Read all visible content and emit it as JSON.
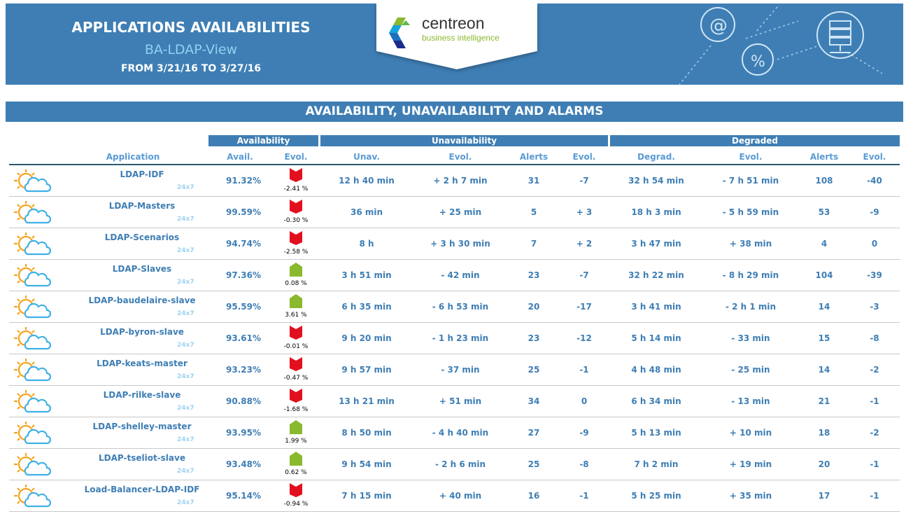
{
  "header": {
    "title": "APPLICATIONS AVAILABILITIES",
    "view": "BA-LDAP-View",
    "period": "FROM 3/21/16 TO 3/27/16",
    "logo": {
      "name": "centreon",
      "tagline": "business intelligence"
    }
  },
  "section_title": "AVAILABILITY, UNAVAILABILITY AND ALARMS",
  "groups": {
    "availability": "Availability",
    "unavailability": "Unavailability",
    "degraded": "Degraded"
  },
  "columns": {
    "application": "Application",
    "avail": "Avail.",
    "avail_evol": "Evol.",
    "unav": "Unav.",
    "unav_evol": "Evol.",
    "unav_alerts": "Alerts",
    "unav_alerts_evol": "Evol.",
    "degrad": "Degrad.",
    "degrad_evol": "Evol.",
    "degrad_alerts": "Alerts",
    "degrad_alerts_evol": "Evol."
  },
  "colors": {
    "brand": "#3e7eb4",
    "down": "#e2101f",
    "up": "#8ab92d"
  },
  "rows": [
    {
      "name": "LDAP-IDF",
      "sla": "24x7",
      "avail": "91.32%",
      "trend": "down",
      "evol": "-2.41 %",
      "unav": "12 h 40 min",
      "unav_evol": "+ 2 h 7 min",
      "alerts": "31",
      "alerts_evol": "-7",
      "degrad": "32 h 54 min",
      "degrad_evol": "- 7 h 51 min",
      "d_alerts": "108",
      "d_alerts_evol": "-40"
    },
    {
      "name": "LDAP-Masters",
      "sla": "24x7",
      "avail": "99.59%",
      "trend": "down",
      "evol": "-0.30 %",
      "unav": "36 min",
      "unav_evol": "+ 25 min",
      "alerts": "5",
      "alerts_evol": "+ 3",
      "degrad": "18 h 3 min",
      "degrad_evol": "- 5 h 59 min",
      "d_alerts": "53",
      "d_alerts_evol": "-9"
    },
    {
      "name": "LDAP-Scenarios",
      "sla": "24x7",
      "avail": "94.74%",
      "trend": "down",
      "evol": "-2.58 %",
      "unav": "8 h",
      "unav_evol": "+ 3 h 30 min",
      "alerts": "7",
      "alerts_evol": "+ 2",
      "degrad": "3 h 47 min",
      "degrad_evol": "+ 38 min",
      "d_alerts": "4",
      "d_alerts_evol": "0"
    },
    {
      "name": "LDAP-Slaves",
      "sla": "24x7",
      "avail": "97.36%",
      "trend": "up",
      "evol": "0.08 %",
      "unav": "3 h 51 min",
      "unav_evol": "- 42 min",
      "alerts": "23",
      "alerts_evol": "-7",
      "degrad": "32 h 22 min",
      "degrad_evol": "- 8 h 29 min",
      "d_alerts": "104",
      "d_alerts_evol": "-39"
    },
    {
      "name": "LDAP-baudelaire-slave",
      "sla": "24x7",
      "avail": "95.59%",
      "trend": "up",
      "evol": "3.61 %",
      "unav": "6 h 35 min",
      "unav_evol": "- 6 h 53 min",
      "alerts": "20",
      "alerts_evol": "-17",
      "degrad": "3 h 41 min",
      "degrad_evol": "- 2 h 1 min",
      "d_alerts": "14",
      "d_alerts_evol": "-3"
    },
    {
      "name": "LDAP-byron-slave",
      "sla": "24x7",
      "avail": "93.61%",
      "trend": "down",
      "evol": "-0.01 %",
      "unav": "9 h 20 min",
      "unav_evol": "- 1 h 23 min",
      "alerts": "23",
      "alerts_evol": "-12",
      "degrad": "5 h 14 min",
      "degrad_evol": "- 33 min",
      "d_alerts": "15",
      "d_alerts_evol": "-8"
    },
    {
      "name": "LDAP-keats-master",
      "sla": "24x7",
      "avail": "93.23%",
      "trend": "down",
      "evol": "-0.47 %",
      "unav": "9 h 57 min",
      "unav_evol": "- 37 min",
      "alerts": "25",
      "alerts_evol": "-1",
      "degrad": "4 h 48 min",
      "degrad_evol": "- 25 min",
      "d_alerts": "14",
      "d_alerts_evol": "-2"
    },
    {
      "name": "LDAP-rilke-slave",
      "sla": "24x7",
      "avail": "90.88%",
      "trend": "down",
      "evol": "-1.68 %",
      "unav": "13 h 21 min",
      "unav_evol": "+ 51 min",
      "alerts": "34",
      "alerts_evol": "0",
      "degrad": "6 h 34 min",
      "degrad_evol": "- 13 min",
      "d_alerts": "21",
      "d_alerts_evol": "-1"
    },
    {
      "name": "LDAP-shelley-master",
      "sla": "24x7",
      "avail": "93.95%",
      "trend": "up",
      "evol": "1.99 %",
      "unav": "8 h 50 min",
      "unav_evol": "- 4 h 40 min",
      "alerts": "27",
      "alerts_evol": "-9",
      "degrad": "5 h 13 min",
      "degrad_evol": "+ 10 min",
      "d_alerts": "18",
      "d_alerts_evol": "-2"
    },
    {
      "name": "LDAP-tseliot-slave",
      "sla": "24x7",
      "avail": "93.48%",
      "trend": "up",
      "evol": "0.62 %",
      "unav": "9 h 54 min",
      "unav_evol": "- 2 h 6 min",
      "alerts": "25",
      "alerts_evol": "-8",
      "degrad": "7 h 2 min",
      "degrad_evol": "+ 19 min",
      "d_alerts": "20",
      "d_alerts_evol": "-1"
    },
    {
      "name": "Load-Balancer-LDAP-IDF",
      "sla": "24x7",
      "avail": "95.14%",
      "trend": "down",
      "evol": "-0.94 %",
      "unav": "7 h 15 min",
      "unav_evol": "+ 40 min",
      "alerts": "16",
      "alerts_evol": "-1",
      "degrad": "5 h 25 min",
      "degrad_evol": "+ 35 min",
      "d_alerts": "17",
      "d_alerts_evol": "-1"
    }
  ]
}
